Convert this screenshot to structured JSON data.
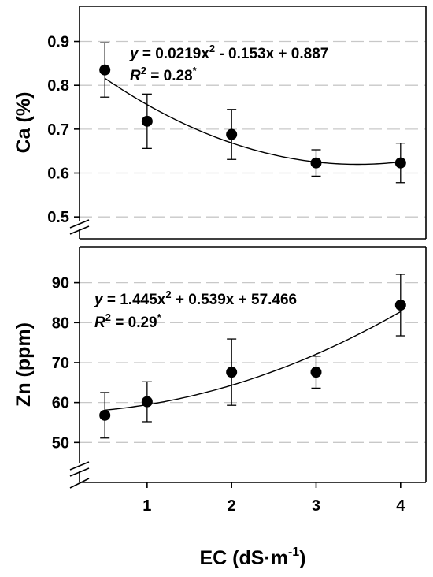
{
  "chart_data": [
    {
      "type": "scatter",
      "ylabel": "Ca (%)",
      "xlabel": "",
      "xlim": [
        0.2,
        4.3
      ],
      "ylim": [
        0.45,
        0.98
      ],
      "yticks": [
        0.5,
        0.6,
        0.7,
        0.8,
        0.9
      ],
      "ytick_labels": [
        "0.5",
        "0.6",
        "0.7",
        "0.8",
        "0.9"
      ],
      "grid": true,
      "axis_break": true,
      "x": [
        0.5,
        1,
        2,
        3,
        4
      ],
      "y": [
        0.835,
        0.718,
        0.688,
        0.623,
        0.623
      ],
      "error": [
        0.062,
        0.062,
        0.057,
        0.03,
        0.045
      ],
      "fit": {
        "a": 0.0219,
        "b": -0.153,
        "c": 0.887
      },
      "equation": {
        "prefix": "y",
        "body": " = 0.0219x",
        "sup": "2",
        "rest": " - 0.153x + 0.887"
      },
      "r2": {
        "r": "R",
        "sup": "2",
        "value": " = 0.28",
        "star": "*"
      }
    },
    {
      "type": "scatter",
      "ylabel": "Zn (ppm)",
      "xlabel": "EC (dS·m⁻¹)",
      "xlim": [
        0.2,
        4.3
      ],
      "ylim": [
        40,
        99
      ],
      "yticks": [
        50,
        60,
        70,
        80,
        90
      ],
      "ytick_labels": [
        "50",
        "60",
        "70",
        "80",
        "90"
      ],
      "grid": true,
      "axis_break": true,
      "x": [
        0.5,
        1,
        2,
        3,
        4
      ],
      "y": [
        56.8,
        60.2,
        67.6,
        67.6,
        84.4
      ],
      "error": [
        5.7,
        5.0,
        8.3,
        4.0,
        7.7
      ],
      "fit": {
        "a": 1.445,
        "b": 0.539,
        "c": 57.466
      },
      "equation": {
        "prefix": "y",
        "body": " = 1.445x",
        "sup": "2",
        "rest": " + 0.539x + 57.466"
      },
      "r2": {
        "r": "R",
        "sup": "2",
        "value": " = 0.29",
        "star": "*"
      }
    }
  ],
  "x_axis": {
    "ticks": [
      1,
      2,
      3,
      4
    ],
    "tick_labels": [
      "1",
      "2",
      "3",
      "4"
    ],
    "title_main": "EC (dS·m",
    "title_sup": "-1",
    "title_end": ")"
  }
}
